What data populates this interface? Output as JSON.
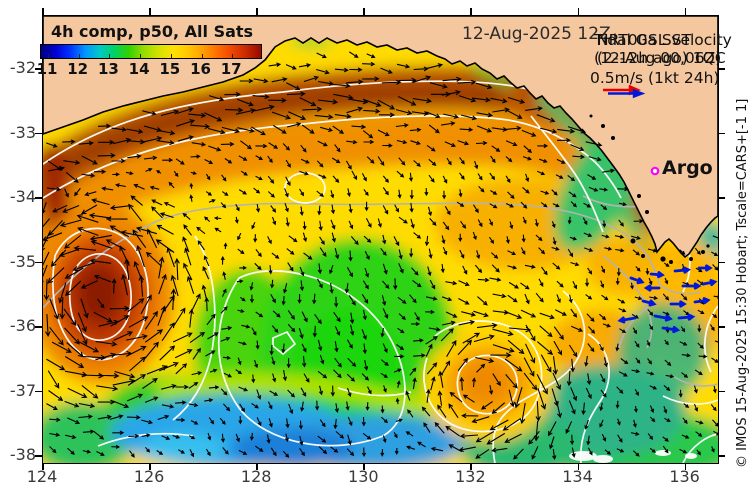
{
  "figure": {
    "date_label": "12-Aug-2025 12Z",
    "colorbar": {
      "title": "4h comp, p50, All Sats",
      "tick_labels": [
        "11",
        "12",
        "13",
        "14",
        "15",
        "16",
        "17"
      ],
      "gradient": [
        "#000082",
        "#0000d2",
        "#0032ff",
        "#0096ff",
        "#00c8c8",
        "#00d264",
        "#32d200",
        "#96dc00",
        "#d2e100",
        "#ffe100",
        "#ffc800",
        "#ffa000",
        "#ff6e00",
        "#f04600",
        "#c82800",
        "#960a00"
      ]
    },
    "annotations": {
      "sst_product_line1": "NRT00a SST",
      "sst_product_line2": "(2-12h ago) 1QC",
      "velocity_product_line1": "Tidal GSL velocity",
      "velocity_product_line2": "(12-Aug 00,06Z)",
      "velocity_scale": "0.5m/s (1kt 24h)",
      "argo_label": "Argo"
    },
    "credit": "© IMOS 15-Aug-2025 15:30 Hobart; Tscale=CARS+[-1 1]",
    "axes": {
      "x_tick_labels": [
        "124",
        "126",
        "128",
        "130",
        "132",
        "134",
        "136"
      ],
      "y_tick_labels": [
        "-32",
        "-33",
        "-34",
        "-35",
        "-36",
        "-37",
        "-38"
      ],
      "x_range": [
        124,
        136.6
      ],
      "y_range": [
        -31.2,
        -38.1
      ]
    },
    "colors": {
      "land": "#f4c79f",
      "coastline": "#000000",
      "contour_white": "#ffffff",
      "contour_grey": "#b3b3b3",
      "vector_black": "#000000",
      "vector_tidal_blue": "#0018dc",
      "argo_magenta": "#ff00ff",
      "scale_arrow_red": "#e80000",
      "scale_arrow_blue": "#0018dc"
    }
  }
}
